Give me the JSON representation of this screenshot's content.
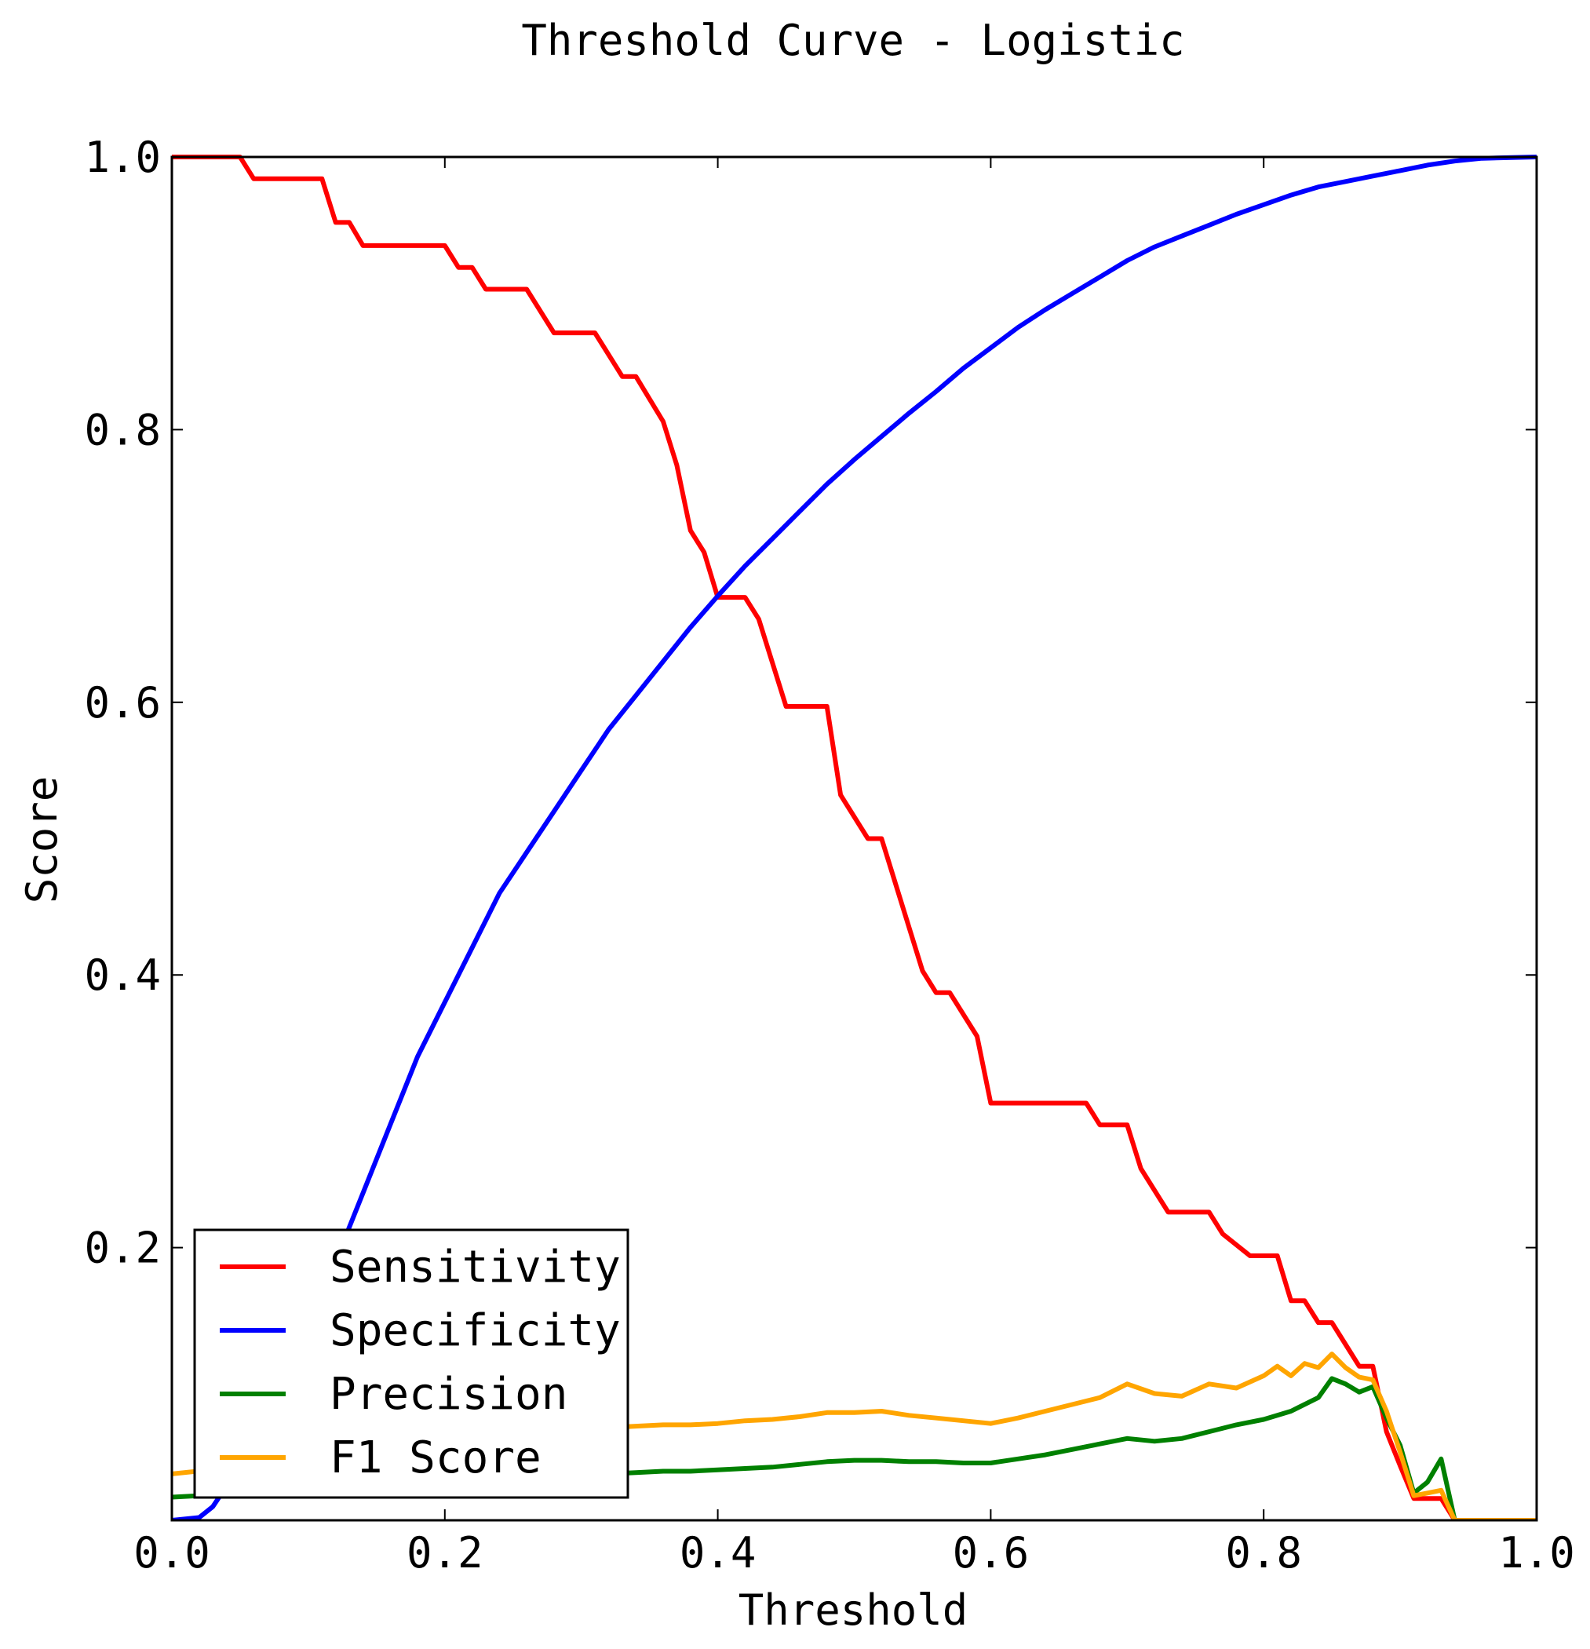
{
  "chart_data": {
    "type": "line",
    "title": "Threshold Curve - Logistic",
    "xlabel": "Threshold",
    "ylabel": "Score",
    "xlim": [
      0,
      1
    ],
    "ylim": [
      0,
      1
    ],
    "x_ticks": [
      "0.0",
      "0.2",
      "0.4",
      "0.6",
      "0.8",
      "1.0"
    ],
    "y_ticks": [
      "0.2",
      "0.4",
      "0.6",
      "0.8",
      "1.0"
    ],
    "grid": false,
    "legend_position": "bottom-left",
    "series": [
      {
        "name": "Sensitivity",
        "color": "#ff0000",
        "x": [
          0.0,
          0.05,
          0.06,
          0.11,
          0.12,
          0.13,
          0.14,
          0.2,
          0.21,
          0.22,
          0.23,
          0.26,
          0.28,
          0.31,
          0.33,
          0.34,
          0.36,
          0.37,
          0.38,
          0.39,
          0.4,
          0.42,
          0.43,
          0.45,
          0.48,
          0.49,
          0.51,
          0.52,
          0.55,
          0.56,
          0.57,
          0.59,
          0.6,
          0.67,
          0.68,
          0.7,
          0.71,
          0.73,
          0.76,
          0.77,
          0.79,
          0.81,
          0.82,
          0.83,
          0.84,
          0.85,
          0.86,
          0.87,
          0.88,
          0.89,
          0.9,
          0.91,
          0.92,
          0.93,
          0.94,
          1.0
        ],
        "y": [
          1.0,
          1.0,
          0.984,
          0.984,
          0.952,
          0.952,
          0.935,
          0.935,
          0.919,
          0.919,
          0.903,
          0.903,
          0.871,
          0.871,
          0.839,
          0.839,
          0.806,
          0.774,
          0.726,
          0.71,
          0.677,
          0.677,
          0.661,
          0.597,
          0.597,
          0.532,
          0.5,
          0.5,
          0.403,
          0.387,
          0.387,
          0.355,
          0.306,
          0.306,
          0.29,
          0.29,
          0.258,
          0.226,
          0.226,
          0.21,
          0.194,
          0.194,
          0.161,
          0.161,
          0.145,
          0.145,
          0.129,
          0.113,
          0.113,
          0.065,
          0.04,
          0.016,
          0.016,
          0.016,
          0.0,
          0.0
        ]
      },
      {
        "name": "Specificity",
        "color": "#0000ff",
        "x": [
          0.0,
          0.02,
          0.03,
          0.04,
          0.06,
          0.08,
          0.1,
          0.12,
          0.14,
          0.16,
          0.18,
          0.2,
          0.22,
          0.24,
          0.26,
          0.28,
          0.3,
          0.32,
          0.34,
          0.36,
          0.38,
          0.4,
          0.42,
          0.44,
          0.46,
          0.48,
          0.5,
          0.52,
          0.54,
          0.56,
          0.58,
          0.6,
          0.62,
          0.64,
          0.66,
          0.68,
          0.7,
          0.72,
          0.74,
          0.76,
          0.78,
          0.8,
          0.82,
          0.84,
          0.86,
          0.88,
          0.9,
          0.92,
          0.94,
          0.96,
          1.0
        ],
        "y": [
          0.0,
          0.002,
          0.01,
          0.025,
          0.06,
          0.1,
          0.14,
          0.19,
          0.24,
          0.29,
          0.34,
          0.38,
          0.42,
          0.46,
          0.49,
          0.52,
          0.55,
          0.58,
          0.605,
          0.63,
          0.655,
          0.678,
          0.7,
          0.72,
          0.74,
          0.76,
          0.778,
          0.795,
          0.812,
          0.828,
          0.845,
          0.86,
          0.875,
          0.888,
          0.9,
          0.912,
          0.924,
          0.934,
          0.942,
          0.95,
          0.958,
          0.965,
          0.972,
          0.978,
          0.982,
          0.986,
          0.99,
          0.994,
          0.997,
          0.999,
          1.0
        ]
      },
      {
        "name": "Precision",
        "color": "#008000",
        "x": [
          0.0,
          0.32,
          0.34,
          0.36,
          0.38,
          0.4,
          0.42,
          0.44,
          0.46,
          0.48,
          0.5,
          0.52,
          0.54,
          0.56,
          0.58,
          0.6,
          0.62,
          0.64,
          0.66,
          0.68,
          0.7,
          0.72,
          0.74,
          0.76,
          0.78,
          0.8,
          0.82,
          0.84,
          0.85,
          0.86,
          0.87,
          0.88,
          0.89,
          0.9,
          0.91,
          0.92,
          0.93,
          0.94,
          1.0
        ],
        "y": [
          0.017,
          0.034,
          0.035,
          0.036,
          0.036,
          0.037,
          0.038,
          0.039,
          0.041,
          0.043,
          0.044,
          0.044,
          0.043,
          0.043,
          0.042,
          0.042,
          0.045,
          0.048,
          0.052,
          0.056,
          0.06,
          0.058,
          0.06,
          0.065,
          0.07,
          0.074,
          0.08,
          0.09,
          0.104,
          0.1,
          0.094,
          0.098,
          0.075,
          0.055,
          0.02,
          0.028,
          0.045,
          0.0,
          0.0
        ]
      },
      {
        "name": "F1 Score",
        "color": "#ffa500",
        "x": [
          0.0,
          0.32,
          0.34,
          0.36,
          0.38,
          0.4,
          0.42,
          0.44,
          0.46,
          0.48,
          0.5,
          0.52,
          0.54,
          0.56,
          0.58,
          0.6,
          0.62,
          0.64,
          0.66,
          0.68,
          0.7,
          0.72,
          0.74,
          0.76,
          0.78,
          0.8,
          0.81,
          0.82,
          0.83,
          0.84,
          0.85,
          0.86,
          0.87,
          0.88,
          0.89,
          0.9,
          0.91,
          0.92,
          0.93,
          0.94,
          1.0
        ],
        "y": [
          0.034,
          0.068,
          0.069,
          0.07,
          0.07,
          0.071,
          0.073,
          0.074,
          0.076,
          0.079,
          0.079,
          0.08,
          0.077,
          0.075,
          0.073,
          0.071,
          0.075,
          0.08,
          0.085,
          0.09,
          0.1,
          0.093,
          0.091,
          0.1,
          0.097,
          0.106,
          0.113,
          0.106,
          0.115,
          0.112,
          0.122,
          0.112,
          0.105,
          0.103,
          0.08,
          0.05,
          0.018,
          0.02,
          0.022,
          0.0,
          0.0
        ]
      }
    ]
  }
}
